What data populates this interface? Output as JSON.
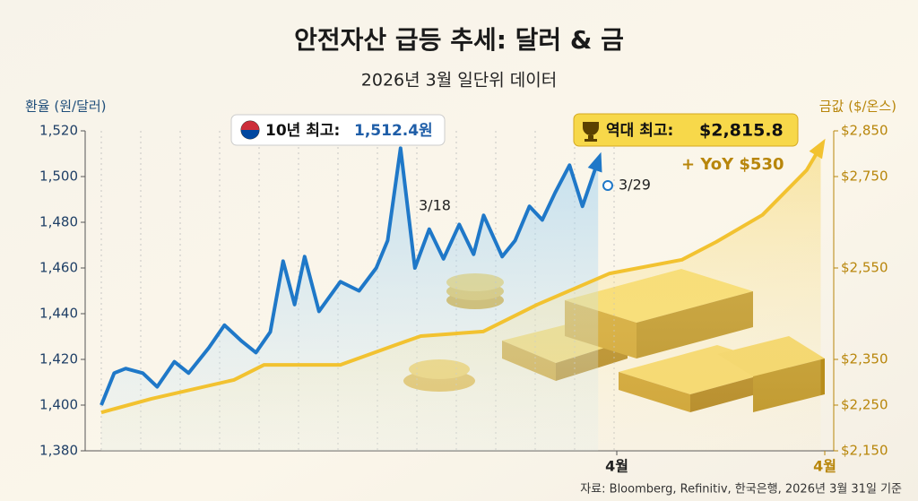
{
  "chart_data": {
    "type": "line",
    "title": "안전자산 급등 추세: 달러 & 금",
    "subtitle": "2026년 3월 일단위 데이터",
    "y_label": "환율 (원/달러)",
    "y2_label": "금값 ($/온스)",
    "xlim": [
      0,
      36
    ],
    "x2lim": [
      0,
      36
    ],
    "xticks": [
      {
        "value": 36,
        "label": "4월"
      }
    ],
    "x2ticks": [
      {
        "value": 36,
        "label": "4월"
      }
    ],
    "ylim": [
      1380,
      1520
    ],
    "yticks": [
      {
        "value": 1380,
        "label": "1,380"
      },
      {
        "value": 1400,
        "label": "1,400"
      },
      {
        "value": 1420,
        "label": "1,420"
      },
      {
        "value": 1440,
        "label": "1,440"
      },
      {
        "value": 1460,
        "label": "1,460"
      },
      {
        "value": 1480,
        "label": "1,480"
      },
      {
        "value": 1500,
        "label": "1,500"
      },
      {
        "value": 1520,
        "label": "1,520"
      }
    ],
    "y2lim": [
      2150,
      2850
    ],
    "y2ticks": [
      {
        "value": 2150,
        "label": "$2,150"
      },
      {
        "value": 2250,
        "label": "$2,250"
      },
      {
        "value": 2350,
        "label": "$2,350"
      },
      {
        "value": 2550,
        "label": "$2,550"
      },
      {
        "value": 2750,
        "label": "$2,750"
      },
      {
        "value": 2850,
        "label": "$2,850"
      }
    ],
    "series": [
      {
        "name": "환율",
        "color": "#1f78c8",
        "x": [
          0,
          0.9,
          1.7,
          2.9,
          3.9,
          5.1,
          6.1,
          7.5,
          8.6,
          9.8,
          10.8,
          11.8,
          12.7,
          13.5,
          14.2,
          15.2,
          16.7,
          18,
          19.2,
          20,
          20.9,
          21.9,
          22.9,
          23.9,
          25,
          26,
          26.7,
          28,
          28.9,
          29.9,
          30.8,
          31.7,
          32.7,
          33.6,
          34.7
        ],
        "values": [
          1400,
          1414,
          1416,
          1414,
          1408,
          1419,
          1414,
          1425,
          1435,
          1428,
          1423,
          1432,
          1463,
          1444,
          1465,
          1441,
          1454,
          1450,
          1460,
          1472,
          1512.4,
          1460,
          1477,
          1464,
          1479,
          1466,
          1483,
          1465,
          1472,
          1487,
          1481,
          1493,
          1505,
          1487,
          1507
        ]
      },
      {
        "name": "금값",
        "color": "#f2c230",
        "axis": "y2",
        "x": [
          0,
          2.5,
          6.6,
          8.1,
          11.9,
          14.6,
          15.9,
          19,
          21.7,
          25.3,
          28.9,
          30.6,
          32.9,
          35.1,
          35.8
        ],
        "values": [
          2234,
          2264,
          2305,
          2338,
          2338,
          2381,
          2401,
          2411,
          2470,
          2538,
          2568,
          2607,
          2666,
          2764,
          2815.8
        ]
      }
    ],
    "annotations": {
      "peak_label": "10년 최고:",
      "peak_value": "1,512.4원",
      "gold_label": "역대 최고:",
      "gold_value": "$2,815.8",
      "yoy": "+ YoY $530",
      "mid_date": "3/18",
      "end_date": "3/29"
    },
    "source": "자료: Bloomberg, Refinitiv, 한국은행, 2026년 3월 31일 기준"
  }
}
